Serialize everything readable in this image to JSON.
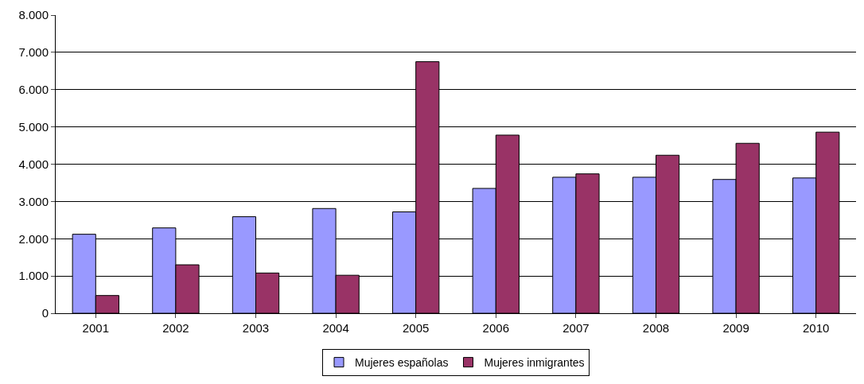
{
  "chart_data": {
    "type": "bar",
    "categories": [
      "2001",
      "2002",
      "2003",
      "2004",
      "2005",
      "2006",
      "2007",
      "2008",
      "2009",
      "2010"
    ],
    "series": [
      {
        "name": "Mujeres españolas",
        "color": "#9999ff",
        "values": [
          2120,
          2290,
          2590,
          2810,
          2720,
          3350,
          3650,
          3650,
          3590,
          3630
        ]
      },
      {
        "name": "Mujeres inmigrantes",
        "color": "#993366",
        "values": [
          476,
          1300,
          1080,
          1020,
          6750,
          4780,
          3740,
          4240,
          4560,
          4860
        ]
      }
    ],
    "ylim": [
      0,
      8000
    ],
    "yticks": [
      {
        "value": 0,
        "label": "0"
      },
      {
        "value": 1000,
        "label": "1.000"
      },
      {
        "value": 2000,
        "label": "2.000"
      },
      {
        "value": 3000,
        "label": "3.000"
      },
      {
        "value": 4000,
        "label": "4.000"
      },
      {
        "value": 5000,
        "label": "5.000"
      },
      {
        "value": 6000,
        "label": "6.000"
      },
      {
        "value": 7000,
        "label": "7.000"
      },
      {
        "value": 8000,
        "label": "8.000"
      }
    ],
    "grid": "y",
    "legend": "bottom"
  }
}
